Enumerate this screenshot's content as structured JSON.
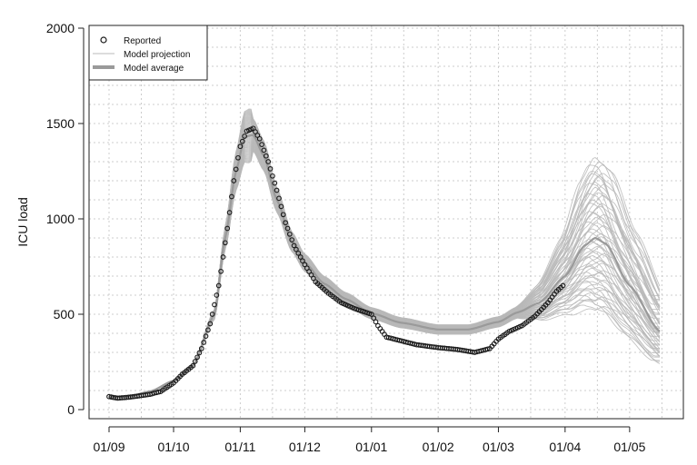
{
  "chart_data": {
    "type": "line",
    "title": "",
    "xlabel": "",
    "ylabel": "ICU load",
    "ylim": [
      0,
      2000
    ],
    "yticks": [
      0,
      500,
      1000,
      1500,
      2000
    ],
    "xlim": [
      "2020-09-01",
      "2021-05-15"
    ],
    "xticks": [
      {
        "label": "01/09",
        "date": "2020-09-01"
      },
      {
        "label": "01/10",
        "date": "2020-10-01"
      },
      {
        "label": "01/11",
        "date": "2020-11-01"
      },
      {
        "label": "01/12",
        "date": "2020-12-01"
      },
      {
        "label": "01/01",
        "date": "2021-01-01"
      },
      {
        "label": "01/02",
        "date": "2021-02-01"
      },
      {
        "label": "01/03",
        "date": "2021-03-01"
      },
      {
        "label": "01/04",
        "date": "2021-04-01"
      },
      {
        "label": "01/05",
        "date": "2021-05-01"
      }
    ],
    "grid": true,
    "legend": {
      "position": "top-left",
      "entries": [
        {
          "label": "Reported",
          "style": "open-circle"
        },
        {
          "label": "Model projection",
          "style": "thin-line"
        },
        {
          "label": "Model average",
          "style": "thick-line"
        }
      ]
    },
    "colors": {
      "reported": "#1a1a1a",
      "projection": "#b8b8b8",
      "average": "#9a9a9a",
      "grid": "#cccccc"
    },
    "projection_spread": {
      "n_lines": 60,
      "end_date": "2021-05-15",
      "note": "ensemble of model projections around the model average"
    },
    "series": [
      {
        "name": "Model average",
        "points": [
          [
            "2020-09-01",
            65
          ],
          [
            "2020-09-10",
            68
          ],
          [
            "2020-09-20",
            95
          ],
          [
            "2020-10-01",
            150
          ],
          [
            "2020-10-10",
            230
          ],
          [
            "2020-10-20",
            500
          ],
          [
            "2020-10-25",
            900
          ],
          [
            "2020-10-30",
            1250
          ],
          [
            "2020-11-03",
            1430
          ],
          [
            "2020-11-07",
            1440
          ],
          [
            "2020-11-12",
            1330
          ],
          [
            "2020-11-18",
            1100
          ],
          [
            "2020-11-25",
            880
          ],
          [
            "2020-12-01",
            770
          ],
          [
            "2020-12-10",
            660
          ],
          [
            "2020-12-20",
            580
          ],
          [
            "2021-01-01",
            505
          ],
          [
            "2021-01-15",
            455
          ],
          [
            "2021-02-01",
            420
          ],
          [
            "2021-02-15",
            420
          ],
          [
            "2021-03-01",
            460
          ],
          [
            "2021-03-10",
            510
          ],
          [
            "2021-03-20",
            560
          ],
          [
            "2021-04-01",
            700
          ],
          [
            "2021-04-10",
            860
          ],
          [
            "2021-04-15",
            900
          ],
          [
            "2021-04-20",
            870
          ],
          [
            "2021-05-01",
            650
          ],
          [
            "2021-05-15",
            410
          ]
        ]
      },
      {
        "name": "Reported",
        "points": [
          [
            "2020-09-01",
            68
          ],
          [
            "2020-09-05",
            60
          ],
          [
            "2020-09-10",
            65
          ],
          [
            "2020-09-15",
            72
          ],
          [
            "2020-09-20",
            80
          ],
          [
            "2020-09-25",
            95
          ],
          [
            "2020-10-01",
            140
          ],
          [
            "2020-10-05",
            185
          ],
          [
            "2020-10-10",
            230
          ],
          [
            "2020-10-14",
            320
          ],
          [
            "2020-10-18",
            450
          ],
          [
            "2020-10-22",
            650
          ],
          [
            "2020-10-26",
            950
          ],
          [
            "2020-10-29",
            1200
          ],
          [
            "2020-11-01",
            1380
          ],
          [
            "2020-11-04",
            1460
          ],
          [
            "2020-11-07",
            1475
          ],
          [
            "2020-11-10",
            1420
          ],
          [
            "2020-11-14",
            1300
          ],
          [
            "2020-11-18",
            1150
          ],
          [
            "2020-11-22",
            980
          ],
          [
            "2020-11-26",
            860
          ],
          [
            "2020-12-01",
            760
          ],
          [
            "2020-12-06",
            670
          ],
          [
            "2020-12-12",
            610
          ],
          [
            "2020-12-18",
            560
          ],
          [
            "2020-12-24",
            530
          ],
          [
            "2021-01-01",
            500
          ],
          [
            "2021-01-04",
            440
          ],
          [
            "2021-01-08",
            380
          ],
          [
            "2021-01-15",
            360
          ],
          [
            "2021-01-22",
            340
          ],
          [
            "2021-02-01",
            325
          ],
          [
            "2021-02-10",
            315
          ],
          [
            "2021-02-18",
            300
          ],
          [
            "2021-02-25",
            320
          ],
          [
            "2021-03-01",
            370
          ],
          [
            "2021-03-06",
            410
          ],
          [
            "2021-03-12",
            440
          ],
          [
            "2021-03-18",
            490
          ],
          [
            "2021-03-24",
            560
          ],
          [
            "2021-03-28",
            620
          ],
          [
            "2021-03-31",
            650
          ]
        ]
      }
    ]
  }
}
